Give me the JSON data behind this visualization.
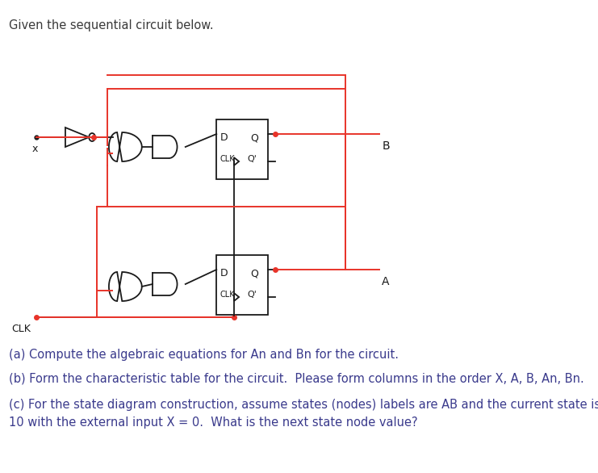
{
  "bg_color": "#ffffff",
  "text_color": "#3a3a8c",
  "dark_color": "#1a1a1a",
  "red_color": "#e8342a",
  "title_text": "Given the sequential circuit below.",
  "title_color": "#3a3a3a",
  "line_a": "(a) Compute the algebraic equations for An and Bn for the circuit.",
  "line_b": "(b) Form the characteristic table for the circuit.  Please form columns in the order X, A, B, An, Bn.",
  "line_c1": "(c) For the state diagram construction, assume states (nodes) labels are AB and the current state is",
  "line_c2": "10 with the external input X = 0.  What is the next state node value?"
}
